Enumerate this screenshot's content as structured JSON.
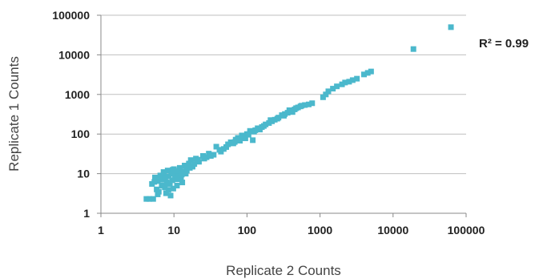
{
  "chart_data": {
    "type": "scatter",
    "title": "",
    "xlabel": "Replicate 2 Counts",
    "ylabel": "Replicate 1 Counts",
    "x_scale": "log",
    "y_scale": "log",
    "xlim": [
      1,
      100000
    ],
    "ylim": [
      1,
      100000
    ],
    "x_ticks": [
      "1",
      "10",
      "100",
      "1000",
      "10000",
      "100000"
    ],
    "y_ticks": [
      "1",
      "10",
      "100",
      "1000",
      "10000",
      "100000"
    ],
    "grid": "horizontal",
    "annotation": {
      "text": "R² = 0.99"
    },
    "marker_color": "#4bb8cc",
    "points": [
      [
        4.2,
        2.3
      ],
      [
        4.6,
        2.3
      ],
      [
        5.2,
        2.3
      ],
      [
        5.0,
        5.5
      ],
      [
        5.5,
        8.0
      ],
      [
        5.8,
        4.0
      ],
      [
        6.0,
        6.5
      ],
      [
        6.2,
        3.5
      ],
      [
        6.5,
        9.0
      ],
      [
        6.8,
        5.0
      ],
      [
        7.0,
        7.0
      ],
      [
        7.2,
        11.0
      ],
      [
        7.5,
        4.5
      ],
      [
        7.8,
        3.2
      ],
      [
        8.0,
        6.0
      ],
      [
        8.2,
        12.0
      ],
      [
        8.5,
        8.5
      ],
      [
        8.8,
        5.5
      ],
      [
        9.0,
        2.8
      ],
      [
        9.2,
        10.0
      ],
      [
        9.5,
        6.8
      ],
      [
        9.8,
        4.2
      ],
      [
        10.0,
        13.0
      ],
      [
        10.3,
        7.5
      ],
      [
        10.6,
        9.0
      ],
      [
        11.0,
        5.0
      ],
      [
        11.5,
        10.5
      ],
      [
        12.0,
        14.0
      ],
      [
        12.5,
        8.0
      ],
      [
        13.0,
        6.0
      ],
      [
        13.5,
        11.5
      ],
      [
        14.0,
        16.0
      ],
      [
        15.0,
        12.0
      ],
      [
        16.0,
        18.0
      ],
      [
        17.0,
        22.0
      ],
      [
        18.0,
        15.0
      ],
      [
        20.0,
        24.0
      ],
      [
        22.0,
        20.0
      ],
      [
        25.0,
        28.0
      ],
      [
        28.0,
        26.0
      ],
      [
        30.0,
        32.0
      ],
      [
        35.0,
        30.0
      ],
      [
        38.0,
        48.0
      ],
      [
        42.0,
        40.0
      ],
      [
        48.0,
        42.0
      ],
      [
        55.0,
        55.0
      ],
      [
        60.0,
        62.0
      ],
      [
        65.0,
        58.0
      ],
      [
        70.0,
        72.0
      ],
      [
        75.0,
        80.0
      ],
      [
        80.0,
        68.0
      ],
      [
        90.0,
        85.0
      ],
      [
        95.0,
        78.0
      ],
      [
        100.0,
        100.0
      ],
      [
        110.0,
        120.0
      ],
      [
        120.0,
        70.0
      ],
      [
        125.0,
        115.0
      ],
      [
        140.0,
        140.0
      ],
      [
        150.0,
        130.0
      ],
      [
        160.0,
        150.0
      ],
      [
        180.0,
        175.0
      ],
      [
        200.0,
        190.0
      ],
      [
        220.0,
        210.0
      ],
      [
        240.0,
        230.0
      ],
      [
        270.0,
        260.0
      ],
      [
        300.0,
        300.0
      ],
      [
        330.0,
        320.0
      ],
      [
        360.0,
        345.0
      ],
      [
        400.0,
        380.0
      ],
      [
        450.0,
        420.0
      ],
      [
        500.0,
        470.0
      ],
      [
        560.0,
        520.0
      ],
      [
        620.0,
        540.0
      ],
      [
        700.0,
        560.0
      ],
      [
        780.0,
        600.0
      ],
      [
        1100.0,
        850.0
      ],
      [
        1200.0,
        1000.0
      ],
      [
        1300.0,
        1200.0
      ],
      [
        1500.0,
        1400.0
      ],
      [
        1700.0,
        1600.0
      ],
      [
        2000.0,
        1800.0
      ],
      [
        2200.0,
        2000.0
      ],
      [
        2500.0,
        2100.0
      ],
      [
        2800.0,
        2300.0
      ],
      [
        3200.0,
        2500.0
      ],
      [
        4000.0,
        3200.0
      ],
      [
        4500.0,
        3500.0
      ],
      [
        5000.0,
        3800.0
      ],
      [
        19000.0,
        14000.0
      ],
      [
        62000.0,
        50000.0
      ],
      [
        6.0,
        3.0
      ],
      [
        6.6,
        8.2
      ],
      [
        7.3,
        9.8
      ],
      [
        8.4,
        3.9
      ],
      [
        9.6,
        12.5
      ],
      [
        11.2,
        7.2
      ],
      [
        12.8,
        9.5
      ],
      [
        14.5,
        10.0
      ],
      [
        16.5,
        14.0
      ],
      [
        19.0,
        17.5
      ],
      [
        21.0,
        22.5
      ],
      [
        26.0,
        24.0
      ],
      [
        32.0,
        28.0
      ],
      [
        44.0,
        36.0
      ],
      [
        52.0,
        47.0
      ],
      [
        68.0,
        63.0
      ],
      [
        85.0,
        92.0
      ],
      [
        105.0,
        96.0
      ],
      [
        130.0,
        125.0
      ],
      [
        170.0,
        160.0
      ],
      [
        210.0,
        225.0
      ],
      [
        260.0,
        245.0
      ],
      [
        320.0,
        290.0
      ],
      [
        380.0,
        400.0
      ],
      [
        420.0,
        360.0
      ],
      [
        470.0,
        450.0
      ],
      [
        540.0,
        500.0
      ],
      [
        5.4,
        6.2
      ],
      [
        7.6,
        7.8
      ],
      [
        10.8,
        11.8
      ]
    ]
  }
}
